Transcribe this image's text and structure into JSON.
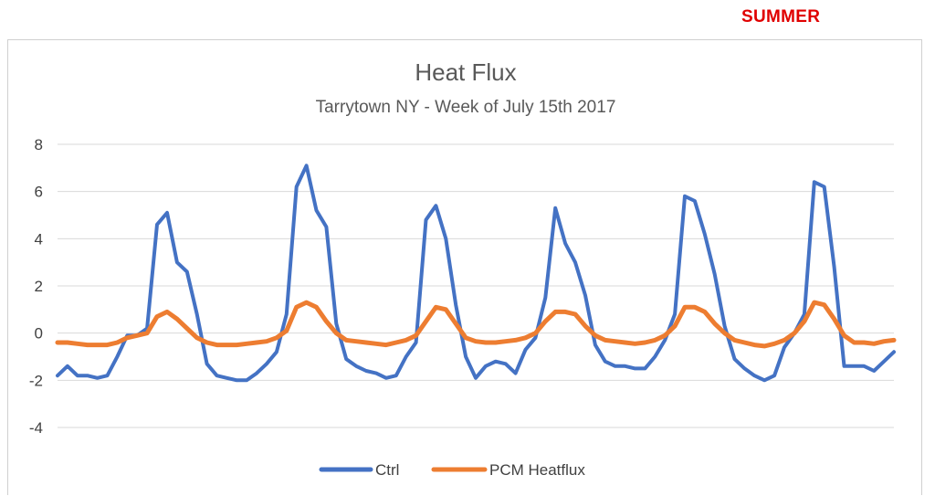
{
  "label": {
    "season": "SUMMER",
    "season_color": "#e00000"
  },
  "chart_data": {
    "type": "line",
    "title": "Heat Flux",
    "subtitle": "Tarrytown NY - Week of July 15th 2017",
    "xlabel": "",
    "ylabel": "",
    "ylim": [
      -4,
      8
    ],
    "yticks": [
      8,
      6,
      4,
      2,
      0,
      -2,
      -4
    ],
    "grid": true,
    "legend": "bottom-center",
    "x": [
      0,
      2,
      4,
      6,
      8,
      10,
      12,
      14,
      16,
      18,
      20,
      22,
      24,
      26,
      28,
      30,
      32,
      34,
      36,
      38,
      40,
      42,
      44,
      46,
      48,
      50,
      52,
      54,
      56,
      58,
      60,
      62,
      64,
      66,
      68,
      70,
      72,
      74,
      76,
      78,
      80,
      82,
      84,
      86,
      88,
      90,
      92,
      94,
      96,
      98,
      100,
      102,
      104,
      106,
      108,
      110,
      112,
      114,
      116,
      118,
      120,
      122,
      124,
      126,
      128,
      130,
      132,
      134,
      136,
      138,
      140,
      142,
      144,
      146,
      148,
      150,
      152,
      154,
      156,
      158,
      160,
      162,
      164,
      166,
      168
    ],
    "series": [
      {
        "name": "Ctrl",
        "color": "#4472c4",
        "values": [
          -1.8,
          -1.4,
          -1.8,
          -1.8,
          -1.9,
          -1.8,
          -1.0,
          -0.1,
          -0.1,
          0.2,
          4.6,
          5.1,
          3.0,
          2.6,
          0.8,
          -1.3,
          -1.8,
          -1.9,
          -2.0,
          -2.0,
          -1.7,
          -1.3,
          -0.8,
          0.8,
          6.2,
          7.1,
          5.2,
          4.5,
          0.4,
          -1.1,
          -1.4,
          -1.6,
          -1.7,
          -1.9,
          -1.8,
          -1.0,
          -0.4,
          4.8,
          5.4,
          4.0,
          1.2,
          -1.0,
          -1.9,
          -1.4,
          -1.2,
          -1.3,
          -1.7,
          -0.7,
          -0.2,
          1.5,
          5.3,
          3.8,
          3.0,
          1.6,
          -0.5,
          -1.2,
          -1.4,
          -1.4,
          -1.5,
          -1.5,
          -1.0,
          -0.3,
          0.8,
          5.8,
          5.6,
          4.2,
          2.5,
          0.3,
          -1.1,
          -1.5,
          -1.8,
          -2.0,
          -1.8,
          -0.6,
          0.0,
          0.8,
          6.4,
          6.2,
          2.8,
          -1.4,
          -1.4,
          -1.4,
          -1.6,
          -1.2,
          -0.8
        ]
      },
      {
        "name": "PCM Heatflux",
        "color": "#ed7d31",
        "values": [
          -0.4,
          -0.4,
          -0.45,
          -0.5,
          -0.5,
          -0.5,
          -0.4,
          -0.2,
          -0.1,
          0.0,
          0.7,
          0.9,
          0.6,
          0.2,
          -0.2,
          -0.4,
          -0.5,
          -0.5,
          -0.5,
          -0.45,
          -0.4,
          -0.35,
          -0.2,
          0.1,
          1.1,
          1.3,
          1.1,
          0.5,
          0.0,
          -0.3,
          -0.35,
          -0.4,
          -0.45,
          -0.5,
          -0.4,
          -0.3,
          -0.1,
          0.5,
          1.1,
          1.0,
          0.4,
          -0.2,
          -0.35,
          -0.4,
          -0.4,
          -0.35,
          -0.3,
          -0.2,
          0.0,
          0.5,
          0.9,
          0.9,
          0.8,
          0.3,
          -0.1,
          -0.3,
          -0.35,
          -0.4,
          -0.45,
          -0.4,
          -0.3,
          -0.1,
          0.3,
          1.1,
          1.1,
          0.9,
          0.4,
          0.0,
          -0.3,
          -0.4,
          -0.5,
          -0.55,
          -0.45,
          -0.3,
          0.0,
          0.5,
          1.3,
          1.2,
          0.6,
          -0.1,
          -0.4,
          -0.4,
          -0.45,
          -0.35,
          -0.3
        ]
      }
    ]
  }
}
